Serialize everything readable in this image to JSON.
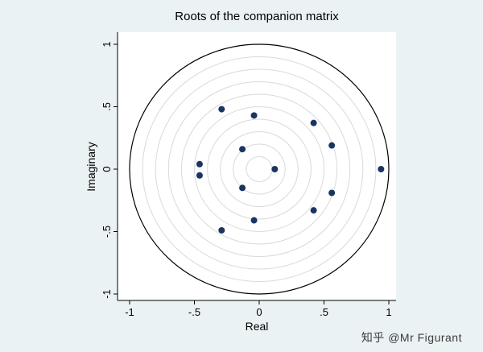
{
  "title": "Roots of the companion matrix",
  "axes": {
    "x": {
      "label": "Real",
      "ticks": [
        "-1",
        "-.5",
        "0",
        ".5",
        "1"
      ],
      "tick_values": [
        -1,
        -0.5,
        0,
        0.5,
        1
      ],
      "range": [
        -1,
        1
      ]
    },
    "y": {
      "label": "Imaginary",
      "ticks": [
        "1",
        ".5",
        "0",
        "-.5",
        "-1"
      ],
      "tick_values": [
        1,
        0.5,
        0,
        -0.5,
        -1
      ],
      "range": [
        -1,
        1
      ]
    }
  },
  "chart_data": {
    "type": "scatter",
    "title": "Roots of the companion matrix",
    "xlabel": "Real",
    "ylabel": "Imaginary",
    "xlim": [
      -1,
      1
    ],
    "ylim": [
      -1,
      1
    ],
    "unit_circle_radius": 1.0,
    "grid_circles": [
      0.1,
      0.2,
      0.3,
      0.4,
      0.5,
      0.6,
      0.7,
      0.8,
      0.9
    ],
    "points": [
      {
        "re": 0.94,
        "im": 0.0
      },
      {
        "re": 0.12,
        "im": 0.0
      },
      {
        "re": -0.46,
        "im": 0.04
      },
      {
        "re": -0.46,
        "im": -0.05
      },
      {
        "re": -0.29,
        "im": 0.48
      },
      {
        "re": -0.29,
        "im": -0.49
      },
      {
        "re": -0.04,
        "im": 0.43
      },
      {
        "re": -0.04,
        "im": -0.41
      },
      {
        "re": 0.42,
        "im": 0.37
      },
      {
        "re": 0.42,
        "im": -0.33
      },
      {
        "re": 0.56,
        "im": 0.19
      },
      {
        "re": 0.56,
        "im": -0.19
      },
      {
        "re": -0.13,
        "im": 0.16
      },
      {
        "re": -0.13,
        "im": -0.15
      }
    ]
  },
  "watermark": {
    "text": "知乎 @Mr Figurant"
  },
  "colors": {
    "background": "#eaf2f3",
    "plot_bg": "#ffffff",
    "point": "#1a3560",
    "grid_circle": "#d9d9d9",
    "unit_circle": "#000000",
    "axis": "#000000"
  }
}
